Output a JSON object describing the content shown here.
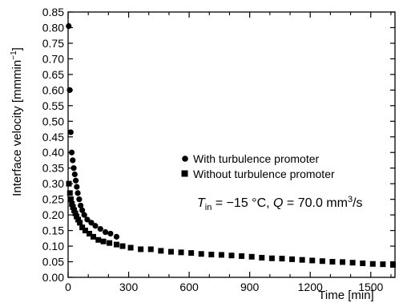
{
  "chart_data": {
    "type": "scatter",
    "title": "",
    "xlabel": "Time [min]",
    "ylabel": "Interface velocity [mmmin",
    "ylabel_sup": "−1",
    "ylabel_close": "]",
    "xlim": [
      0,
      1620
    ],
    "ylim": [
      0,
      0.85
    ],
    "xticks": [
      0,
      300,
      600,
      900,
      1200,
      1500
    ],
    "yticks": [
      0.0,
      0.05,
      0.1,
      0.15,
      0.2,
      0.25,
      0.3,
      0.35,
      0.4,
      0.45,
      0.5,
      0.55,
      0.6,
      0.65,
      0.7,
      0.75,
      0.8,
      0.85
    ],
    "legend_position": "center-right",
    "grid": false,
    "annotation": {
      "t_symbol": "T",
      "t_sub": "in",
      "t_rest": " = −15 °C, ",
      "q_symbol": "Q",
      "q_rest": " = 70.0 mm",
      "q_sup": "3",
      "q_tail": "/s"
    },
    "series": [
      {
        "name": "With turbulence promoter",
        "marker": "circle",
        "color": "#000000",
        "points": [
          [
            3,
            0.805
          ],
          [
            8,
            0.6
          ],
          [
            13,
            0.465
          ],
          [
            18,
            0.4
          ],
          [
            23,
            0.375
          ],
          [
            28,
            0.35
          ],
          [
            33,
            0.33
          ],
          [
            38,
            0.31
          ],
          [
            43,
            0.29
          ],
          [
            48,
            0.27
          ],
          [
            55,
            0.25
          ],
          [
            62,
            0.23
          ],
          [
            70,
            0.215
          ],
          [
            80,
            0.2
          ],
          [
            95,
            0.185
          ],
          [
            115,
            0.175
          ],
          [
            135,
            0.165
          ],
          [
            160,
            0.155
          ],
          [
            185,
            0.145
          ],
          [
            210,
            0.14
          ],
          [
            240,
            0.13
          ]
        ]
      },
      {
        "name": "Without turbulence promoter",
        "marker": "square",
        "color": "#000000",
        "points": [
          [
            4,
            0.3
          ],
          [
            9,
            0.27
          ],
          [
            14,
            0.25
          ],
          [
            19,
            0.235
          ],
          [
            24,
            0.225
          ],
          [
            30,
            0.215
          ],
          [
            36,
            0.205
          ],
          [
            42,
            0.195
          ],
          [
            50,
            0.185
          ],
          [
            58,
            0.175
          ],
          [
            70,
            0.16
          ],
          [
            85,
            0.15
          ],
          [
            105,
            0.14
          ],
          [
            125,
            0.13
          ],
          [
            150,
            0.12
          ],
          [
            175,
            0.115
          ],
          [
            205,
            0.11
          ],
          [
            240,
            0.105
          ],
          [
            270,
            0.1
          ],
          [
            310,
            0.095
          ],
          [
            360,
            0.09
          ],
          [
            410,
            0.09
          ],
          [
            460,
            0.085
          ],
          [
            510,
            0.082
          ],
          [
            560,
            0.08
          ],
          [
            610,
            0.078
          ],
          [
            660,
            0.075
          ],
          [
            710,
            0.073
          ],
          [
            760,
            0.072
          ],
          [
            810,
            0.07
          ],
          [
            860,
            0.068
          ],
          [
            910,
            0.066
          ],
          [
            960,
            0.063
          ],
          [
            1010,
            0.061
          ],
          [
            1060,
            0.06
          ],
          [
            1110,
            0.058
          ],
          [
            1160,
            0.056
          ],
          [
            1210,
            0.054
          ],
          [
            1260,
            0.052
          ],
          [
            1310,
            0.05
          ],
          [
            1360,
            0.049
          ],
          [
            1410,
            0.047
          ],
          [
            1460,
            0.045
          ],
          [
            1510,
            0.043
          ],
          [
            1560,
            0.042
          ],
          [
            1610,
            0.04
          ]
        ]
      }
    ]
  }
}
